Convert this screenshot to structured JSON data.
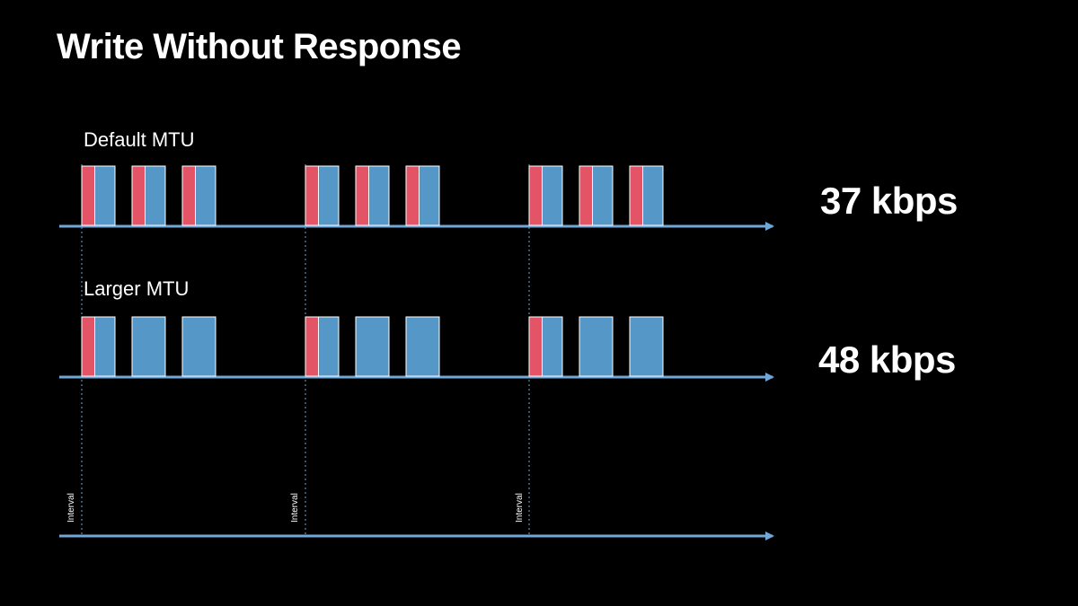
{
  "title": "Write Without Response",
  "rows": [
    {
      "label": "Default MTU",
      "rate": "37 kbps",
      "packets_per_interval": 3,
      "header_on_every_packet": true
    },
    {
      "label": "Larger MTU",
      "rate": "48 kbps",
      "packets_per_interval": 3,
      "header_on_every_packet": false
    }
  ],
  "intervals": {
    "count": 3,
    "label": "Interval"
  },
  "colors": {
    "background": "#000000",
    "axis": "#6fa8d8",
    "packet_body": "#5597c6",
    "packet_header": "#e35566",
    "packet_border": "#ffffff",
    "interval_line": "#6fa8d8",
    "text": "#ffffff"
  }
}
